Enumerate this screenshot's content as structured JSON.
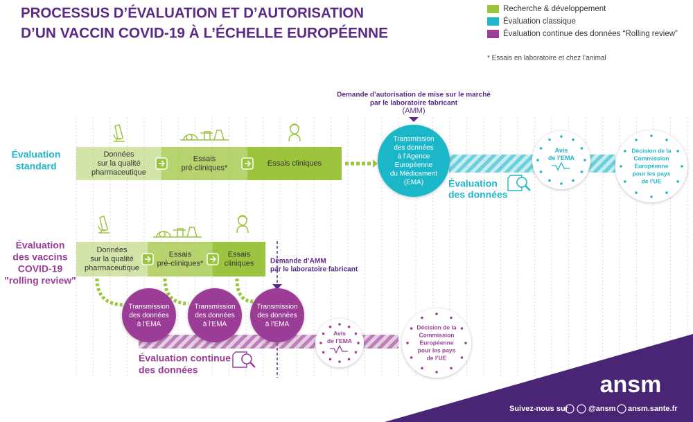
{
  "header": {
    "title": [
      "PROCESSUS D’ÉVALUATION ET D’AUTORISATION",
      "D’UN VACCIN COVID-19 À L’ÉCHELLE EUROPÉENNE"
    ]
  },
  "legend": {
    "items": [
      {
        "label": "Recherche & développement",
        "color": "#9dc43e"
      },
      {
        "label": "Évaluation classique",
        "color": "#1fb6c9"
      },
      {
        "label": "Évaluation continue des données “Rolling review”",
        "color": "#9b3d97"
      }
    ],
    "note": "* Essais en laboratoire et chez l’animal"
  },
  "standard": {
    "label": [
      "Évaluation",
      "standard"
    ],
    "steps": [
      [
        "Données",
        "sur la qualité",
        "pharmaceutique"
      ],
      [
        "Essais",
        "pré-cliniques*"
      ],
      [
        "Essais cliniques"
      ]
    ],
    "request": {
      "lines": [
        "Demande d’autorisation de mise sur le marché",
        "par le laboratoire fabricant"
      ],
      "tag": "(AMM)"
    },
    "transmission": [
      "Transmission",
      "des données",
      "à l’Agence",
      "Européenne",
      "du Médicament",
      "(EMA)"
    ],
    "evaluation": [
      "Évaluation",
      "des données"
    ],
    "opinion": [
      "Avis",
      "de l’EMA"
    ],
    "decision": [
      "Décision de la",
      "Commission",
      "Européenne",
      "pour les pays",
      "de l’UE"
    ]
  },
  "rolling": {
    "label": [
      "Évaluation",
      "des vaccins",
      "COVID-19",
      "\"rolling review\""
    ],
    "steps": [
      [
        "Données",
        "sur la qualité",
        "pharmaceutique"
      ],
      [
        "Essais",
        "pré-cliniques*"
      ],
      [
        "Essais",
        "cliniques"
      ]
    ],
    "request": [
      "Demande d’AMM",
      "par le laboratoire fabricant"
    ],
    "transmissions": [
      [
        "Transmission",
        "des données",
        "à l’EMA"
      ],
      [
        "Transmission",
        "des données",
        "à l’EMA"
      ],
      [
        "Transmission",
        "des données",
        "à l’EMA"
      ]
    ],
    "evaluation": [
      "Évaluation continue",
      "des données"
    ],
    "opinion": [
      "Avis",
      "de l’EMA"
    ],
    "decision": [
      "Décision de la",
      "Commission",
      "Européenne",
      "pour les pays",
      "de l’UE"
    ]
  },
  "footer": {
    "brand": "ansm",
    "follow": "Suivez-nous sur",
    "handle": "@ansm",
    "site": "ansm.sante.fr"
  }
}
